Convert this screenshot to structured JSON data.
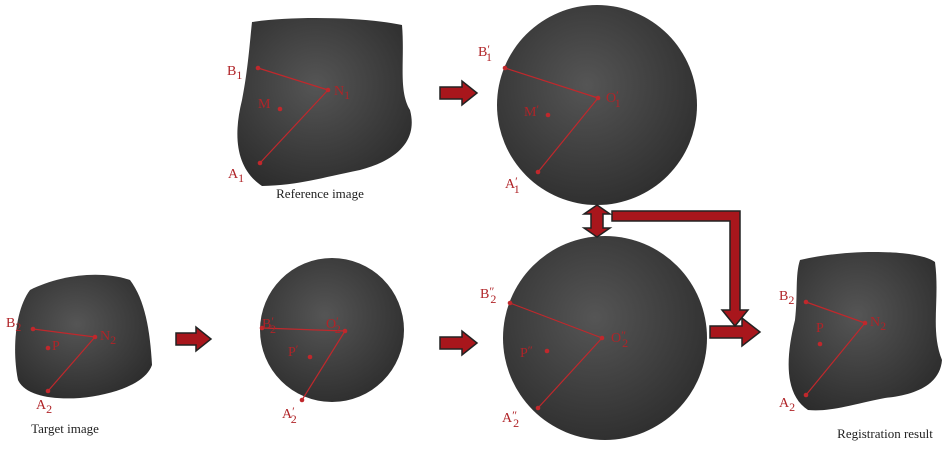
{
  "panels": [
    {
      "caption": "Reference image",
      "labels": [
        {
          "main": "B",
          "sub": "1"
        },
        {
          "main": "N",
          "sub": "1"
        },
        {
          "main": "M"
        },
        {
          "main": "A",
          "sub": "1"
        }
      ]
    },
    {
      "labels": [
        {
          "main": "B",
          "mark": "′",
          "sub": "1"
        },
        {
          "main": "O",
          "mark": "′",
          "sub": "1"
        },
        {
          "main": "M",
          "mark": "′"
        },
        {
          "main": "A",
          "mark": "′",
          "sub": "1"
        }
      ]
    },
    {
      "caption": "Target image",
      "labels": [
        {
          "main": "B",
          "sub": "2"
        },
        {
          "main": "N",
          "sub": "2"
        },
        {
          "main": "P"
        },
        {
          "main": "A",
          "sub": "2"
        }
      ]
    },
    {
      "labels": [
        {
          "main": "B",
          "mark": "′",
          "sub": "2"
        },
        {
          "main": "O",
          "mark": "′",
          "sub": "2"
        },
        {
          "main": "P",
          "mark": "′"
        },
        {
          "main": "A",
          "mark": "′",
          "sub": "2"
        }
      ]
    },
    {
      "labels": [
        {
          "main": "B",
          "mark": "″",
          "sub": "2"
        },
        {
          "main": "O",
          "mark": "″",
          "sub": "2"
        },
        {
          "main": "P",
          "mark": "″"
        },
        {
          "main": "A",
          "mark": "″",
          "sub": "2"
        }
      ]
    },
    {
      "caption": "Registration result",
      "labels": [
        {
          "main": "B",
          "sub": "2"
        },
        {
          "main": "N",
          "sub": "2"
        },
        {
          "main": "P"
        },
        {
          "main": "A",
          "sub": "2"
        }
      ]
    }
  ]
}
